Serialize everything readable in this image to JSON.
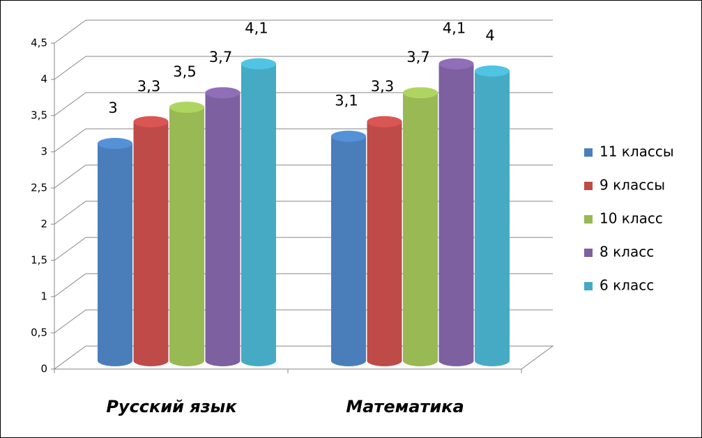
{
  "chart_data": {
    "type": "bar3d",
    "categories": [
      "Русский язык",
      "Математика"
    ],
    "series": [
      {
        "name": "11 классы",
        "color": "#4a7ebb",
        "values": [
          3,
          3.1
        ],
        "value_labels": [
          "3",
          "3,1"
        ]
      },
      {
        "name": "9 классы",
        "color": "#be4b48",
        "values": [
          3.3,
          3.3
        ],
        "value_labels": [
          "3,3",
          "3,3"
        ]
      },
      {
        "name": "10 класс",
        "color": "#98b954",
        "values": [
          3.5,
          3.7
        ],
        "value_labels": [
          "3,5",
          "3,7"
        ]
      },
      {
        "name": "8 класс",
        "color": "#7d60a0",
        "values": [
          3.7,
          4.1
        ],
        "value_labels": [
          "3,7",
          "4,1"
        ]
      },
      {
        "name": "6 класс",
        "color": "#46aac5",
        "values": [
          4.1,
          4
        ],
        "value_labels": [
          "4,1",
          "4"
        ]
      }
    ],
    "ylim": [
      0,
      4.5
    ],
    "yticks": [
      0,
      {
        "value": 0.5,
        "label": "0,5"
      },
      1,
      {
        "value": 1.5,
        "label": "1,5"
      },
      2,
      {
        "value": 2.5,
        "label": "2,5"
      },
      3,
      {
        "value": 3.5,
        "label": "3,5"
      },
      4,
      {
        "value": 4.5,
        "label": "4,5"
      }
    ],
    "grid": true,
    "legend": "right"
  }
}
